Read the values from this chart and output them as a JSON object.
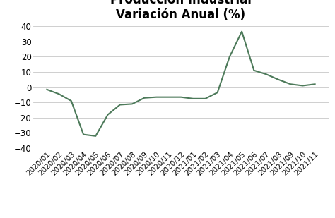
{
  "title": "Producción Industrial\nVariación Anual (%)",
  "labels": [
    "2020/01",
    "2020/02",
    "2020/03",
    "2020/04",
    "2020/05",
    "2020/06",
    "2020/07",
    "2020/08",
    "2020/09",
    "2020/10",
    "2020/11",
    "2020/12",
    "2021/01",
    "2021/02",
    "2021/03",
    "2021/04",
    "2021/05",
    "2021/06",
    "2021/07",
    "2021/08",
    "2021/09",
    "2021/10",
    "2021/11"
  ],
  "values": [
    -1.5,
    -4.5,
    -9.0,
    -31.0,
    -32.0,
    -18.0,
    -11.5,
    -11.0,
    -7.0,
    -6.5,
    -6.5,
    -6.5,
    -7.5,
    -7.5,
    -3.5,
    20.0,
    36.5,
    11.0,
    8.5,
    5.0,
    2.0,
    1.0,
    2.0
  ],
  "line_color": "#4d7a5a",
  "ylim": [
    -40,
    40
  ],
  "yticks": [
    -40,
    -30,
    -20,
    -10,
    0,
    10,
    20,
    30,
    40
  ],
  "background_color": "#ffffff",
  "grid_color": "#c8c8c8",
  "title_fontsize": 12,
  "title_fontweight": "bold",
  "tick_fontsize": 7.5,
  "ytick_fontsize": 8.5
}
